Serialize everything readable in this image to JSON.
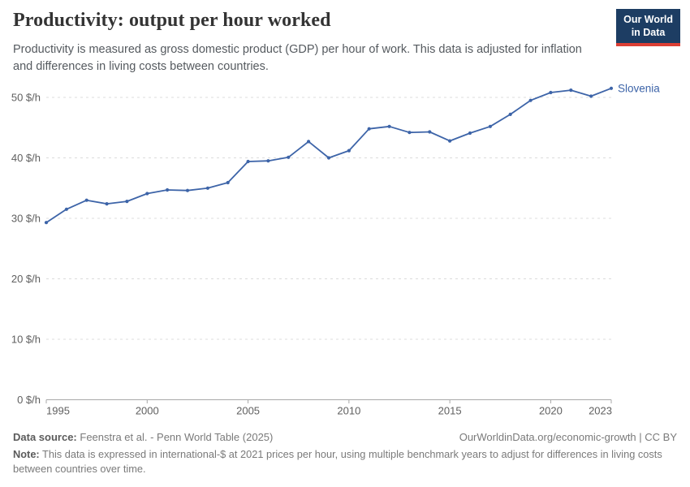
{
  "header": {
    "title": "Productivity: output per hour worked",
    "subtitle": "Productivity is measured as gross domestic product (GDP) per hour of work. This data is adjusted for inflation and differences in living costs between countries.",
    "logo": {
      "line1": "Our World",
      "line2": "in Data",
      "bg_color": "#1d3d63",
      "stripe_color": "#dc3e34"
    }
  },
  "chart_data": {
    "type": "line",
    "title": "Productivity: output per hour worked",
    "unit": "$/h",
    "x": [
      1995,
      1996,
      1997,
      1998,
      1999,
      2000,
      2001,
      2002,
      2003,
      2004,
      2005,
      2006,
      2007,
      2008,
      2009,
      2010,
      2011,
      2012,
      2013,
      2014,
      2015,
      2016,
      2017,
      2018,
      2019,
      2020,
      2021,
      2022,
      2023
    ],
    "series": [
      {
        "name": "Slovenia",
        "color": "#3d64a8",
        "values": [
          29.3,
          31.5,
          33.0,
          32.4,
          32.8,
          34.1,
          34.7,
          34.6,
          35.0,
          35.9,
          39.4,
          39.5,
          40.1,
          42.7,
          40.0,
          41.2,
          44.8,
          45.2,
          44.2,
          44.3,
          42.8,
          44.1,
          45.2,
          47.2,
          49.5,
          50.8,
          51.2,
          50.2,
          51.5
        ]
      }
    ],
    "ylim": [
      0,
      55
    ],
    "yticks": [
      0,
      10,
      20,
      30,
      40,
      50
    ],
    "ytick_labels": [
      "0 $/h",
      "10 $/h",
      "20 $/h",
      "30 $/h",
      "40 $/h",
      "50 $/h"
    ],
    "xticks": [
      1995,
      2000,
      2005,
      2010,
      2015,
      2020,
      2023
    ],
    "grid": "horizontal-dashed",
    "legend_position": "end-of-line-label",
    "axis_color": "#a8a8a8",
    "grid_color": "#dcdcdc",
    "tick_text_color": "#606060"
  },
  "footer": {
    "datasource_label": "Data source:",
    "datasource": "Feenstra et al. - Penn World Table (2025)",
    "link": "OurWorldinData.org/economic-growth | CC BY",
    "note_label": "Note:",
    "note": "This data is expressed in international-$ at 2021 prices per hour, using multiple benchmark years to adjust for differences in living costs between countries over time."
  }
}
